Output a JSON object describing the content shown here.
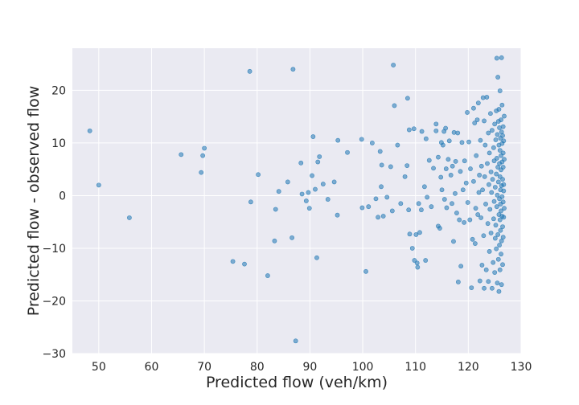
{
  "chart_data": {
    "type": "scatter",
    "xlabel": "Predicted flow (veh/km)",
    "ylabel": "Predicted flow - observed flow",
    "xlim": [
      45,
      130
    ],
    "ylim": [
      -30,
      28
    ],
    "xticks": [
      50,
      60,
      70,
      80,
      90,
      100,
      110,
      120,
      130
    ],
    "yticks": [
      -30,
      -20,
      -10,
      0,
      10,
      20
    ],
    "grid": true,
    "background": "#eaeaf2",
    "grid_color": "#ffffff",
    "marker_color": "#1f77b4",
    "points": [
      [
        48.3,
        12.3
      ],
      [
        50.0,
        2.0
      ],
      [
        55.8,
        -4.2
      ],
      [
        65.6,
        7.8
      ],
      [
        69.4,
        4.4
      ],
      [
        69.7,
        7.6
      ],
      [
        70.0,
        9.0
      ],
      [
        75.4,
        -12.5
      ],
      [
        77.6,
        -13.0
      ],
      [
        78.6,
        23.6
      ],
      [
        78.8,
        -1.2
      ],
      [
        80.2,
        4.0
      ],
      [
        82.0,
        -15.2
      ],
      [
        83.3,
        -8.6
      ],
      [
        83.5,
        -2.6
      ],
      [
        84.1,
        0.8
      ],
      [
        85.8,
        2.6
      ],
      [
        86.8,
        24.0
      ],
      [
        86.6,
        -8.0
      ],
      [
        87.3,
        -27.6
      ],
      [
        88.3,
        6.2
      ],
      [
        88.5,
        0.3
      ],
      [
        89.3,
        -1.0
      ],
      [
        89.7,
        0.6
      ],
      [
        89.9,
        -2.4
      ],
      [
        90.4,
        3.8
      ],
      [
        90.6,
        11.2
      ],
      [
        91.0,
        1.2
      ],
      [
        91.5,
        6.4
      ],
      [
        91.8,
        7.4
      ],
      [
        91.3,
        -11.8
      ],
      [
        92.5,
        2.2
      ],
      [
        93.4,
        -0.7
      ],
      [
        94.6,
        2.6
      ],
      [
        95.3,
        10.5
      ],
      [
        95.2,
        -3.7
      ],
      [
        97.1,
        8.2
      ],
      [
        99.8,
        10.7
      ],
      [
        99.9,
        -2.3
      ],
      [
        100.6,
        -14.4
      ],
      [
        101.1,
        -2.1
      ],
      [
        101.8,
        10.0
      ],
      [
        102.5,
        -0.6
      ],
      [
        102.9,
        -4.1
      ],
      [
        103.3,
        8.4
      ],
      [
        103.5,
        1.7
      ],
      [
        103.6,
        5.8
      ],
      [
        103.9,
        -3.9
      ],
      [
        104.6,
        -0.3
      ],
      [
        105.3,
        5.5
      ],
      [
        105.8,
        24.8
      ],
      [
        106.0,
        17.1
      ],
      [
        105.6,
        -2.9
      ],
      [
        106.6,
        9.6
      ],
      [
        107.2,
        -1.5
      ],
      [
        108.0,
        3.6
      ],
      [
        108.5,
        18.5
      ],
      [
        108.8,
        12.5
      ],
      [
        108.4,
        5.7
      ],
      [
        108.7,
        -2.7
      ],
      [
        108.9,
        -7.3
      ],
      [
        109.4,
        -10.0
      ],
      [
        109.7,
        12.7
      ],
      [
        109.8,
        -12.3
      ],
      [
        110.1,
        -7.4
      ],
      [
        110.3,
        -12.8
      ],
      [
        110.4,
        -13.6
      ],
      [
        110.6,
        -1.5
      ],
      [
        110.8,
        -7.0
      ],
      [
        111.2,
        12.2
      ],
      [
        111.1,
        -2.7
      ],
      [
        111.7,
        1.7
      ],
      [
        111.9,
        -12.3
      ],
      [
        112.0,
        10.8
      ],
      [
        112.2,
        -0.3
      ],
      [
        112.6,
        6.7
      ],
      [
        113.0,
        -2.1
      ],
      [
        113.4,
        5.2
      ],
      [
        113.9,
        13.6
      ],
      [
        113.9,
        12.3
      ],
      [
        114.3,
        -5.8
      ],
      [
        114.3,
        7.3
      ],
      [
        114.6,
        -6.2
      ],
      [
        114.8,
        3.5
      ],
      [
        114.9,
        10.1
      ],
      [
        115.0,
        1.1
      ],
      [
        115.2,
        9.6
      ],
      [
        115.4,
        12.2
      ],
      [
        115.5,
        -0.7
      ],
      [
        115.7,
        12.8
      ],
      [
        115.8,
        5.1
      ],
      [
        115.9,
        -2.3
      ],
      [
        116.2,
        6.9
      ],
      [
        116.4,
        10.4
      ],
      [
        116.7,
        3.9
      ],
      [
        116.9,
        -1.5
      ],
      [
        117.0,
        5.6
      ],
      [
        117.2,
        -8.7
      ],
      [
        117.3,
        12.0
      ],
      [
        117.5,
        0.4
      ],
      [
        117.6,
        6.5
      ],
      [
        117.8,
        -3.3
      ],
      [
        118.0,
        11.9
      ],
      [
        118.1,
        -16.4
      ],
      [
        118.3,
        -4.6
      ],
      [
        118.5,
        4.6
      ],
      [
        118.6,
        -13.4
      ],
      [
        118.8,
        10.1
      ],
      [
        119.0,
        1.1
      ],
      [
        119.2,
        -5.1
      ],
      [
        119.3,
        6.6
      ],
      [
        119.6,
        2.4
      ],
      [
        119.8,
        15.8
      ],
      [
        119.9,
        -1.3
      ],
      [
        120.1,
        10.2
      ],
      [
        120.3,
        -4.6
      ],
      [
        120.4,
        5.1
      ],
      [
        120.6,
        -17.5
      ],
      [
        120.8,
        -8.3
      ],
      [
        121.0,
        2.7
      ],
      [
        121.0,
        16.6
      ],
      [
        121.2,
        13.8
      ],
      [
        121.3,
        -9.1
      ],
      [
        121.4,
        -2.4
      ],
      [
        121.5,
        7.6
      ],
      [
        121.7,
        14.4
      ],
      [
        121.8,
        -3.6
      ],
      [
        121.9,
        17.6
      ],
      [
        122.0,
        0.6
      ],
      [
        122.1,
        3.9
      ],
      [
        122.2,
        -16.2
      ],
      [
        122.3,
        10.5
      ],
      [
        122.4,
        -4.2
      ],
      [
        122.5,
        5.6
      ],
      [
        122.6,
        -13.2
      ],
      [
        122.7,
        1.1
      ],
      [
        122.8,
        18.6
      ],
      [
        122.9,
        -7.6
      ],
      [
        123.0,
        14.2
      ],
      [
        123.0,
        -17.6
      ],
      [
        123.1,
        3.6
      ],
      [
        123.2,
        9.6
      ],
      [
        123.3,
        -1.6
      ],
      [
        123.4,
        -14.1
      ],
      [
        123.5,
        18.7
      ],
      [
        123.6,
        6.1
      ],
      [
        123.7,
        -5.3
      ],
      [
        123.8,
        11.9
      ],
      [
        123.8,
        -16.3
      ],
      [
        123.9,
        2.1
      ],
      [
        124.0,
        8.1
      ],
      [
        124.0,
        -10.6
      ],
      [
        124.1,
        -2.6
      ],
      [
        124.2,
        15.6
      ],
      [
        124.3,
        4.5
      ],
      [
        124.3,
        -7.1
      ],
      [
        124.4,
        0.6
      ],
      [
        124.5,
        12.4
      ],
      [
        124.5,
        -17.6
      ],
      [
        124.6,
        3.1
      ],
      [
        124.7,
        -12.7
      ],
      [
        124.8,
        9.1
      ],
      [
        124.8,
        -4.4
      ],
      [
        124.9,
        6.6
      ],
      [
        124.9,
        -1.1
      ],
      [
        125.0,
        13.6
      ],
      [
        125.0,
        -14.6
      ],
      [
        125.1,
        1.6
      ],
      [
        125.1,
        -8.1
      ],
      [
        125.2,
        10.6
      ],
      [
        125.2,
        -5.6
      ],
      [
        125.3,
        4.1
      ],
      [
        125.3,
        16.1
      ],
      [
        125.3,
        -10.1
      ],
      [
        125.4,
        26.1
      ],
      [
        125.4,
        7.1
      ],
      [
        125.4,
        -2.1
      ],
      [
        125.5,
        0.1
      ],
      [
        125.5,
        -16.6
      ],
      [
        125.5,
        11.6
      ],
      [
        125.6,
        22.5
      ],
      [
        125.6,
        -7.4
      ],
      [
        125.6,
        5.4
      ],
      [
        125.7,
        2.6
      ],
      [
        125.7,
        14.1
      ],
      [
        125.7,
        -12.1
      ],
      [
        125.8,
        9.6
      ],
      [
        125.8,
        -3.6
      ],
      [
        125.8,
        16.4
      ],
      [
        125.8,
        -18.2
      ],
      [
        125.9,
        6.1
      ],
      [
        125.9,
        -0.6
      ],
      [
        125.9,
        12.9
      ],
      [
        125.9,
        -9.4
      ],
      [
        126.0,
        19.9
      ],
      [
        126.0,
        3.6
      ],
      [
        126.0,
        -4.6
      ],
      [
        126.0,
        8.6
      ],
      [
        126.0,
        -14.1
      ],
      [
        126.1,
        1.1
      ],
      [
        126.1,
        10.9
      ],
      [
        126.1,
        -6.6
      ],
      [
        126.1,
        -1.6
      ],
      [
        126.2,
        4.9
      ],
      [
        126.2,
        14.4
      ],
      [
        126.2,
        -11.1
      ],
      [
        126.2,
        7.6
      ],
      [
        126.2,
        -2.9
      ],
      [
        126.3,
        26.2
      ],
      [
        126.3,
        12.1
      ],
      [
        126.3,
        -8.6
      ],
      [
        126.3,
        1.9
      ],
      [
        126.3,
        -16.9
      ],
      [
        126.4,
        6.4
      ],
      [
        126.4,
        -3.9
      ],
      [
        126.4,
        9.9
      ],
      [
        126.4,
        -0.2
      ],
      [
        126.4,
        17.2
      ],
      [
        126.5,
        -5.9
      ],
      [
        126.5,
        3.1
      ],
      [
        126.5,
        11.4
      ],
      [
        126.5,
        -13.1
      ],
      [
        126.6,
        5.4
      ],
      [
        126.6,
        -1.2
      ],
      [
        126.6,
        8.1
      ],
      [
        126.6,
        13.1
      ],
      [
        126.6,
        -7.9
      ],
      [
        126.7,
        2.1
      ],
      [
        126.7,
        10.4
      ],
      [
        126.7,
        -4.1
      ],
      [
        126.7,
        0.9
      ],
      [
        126.8,
        6.9
      ],
      [
        126.8,
        -2.4
      ],
      [
        126.8,
        15.1
      ]
    ]
  }
}
